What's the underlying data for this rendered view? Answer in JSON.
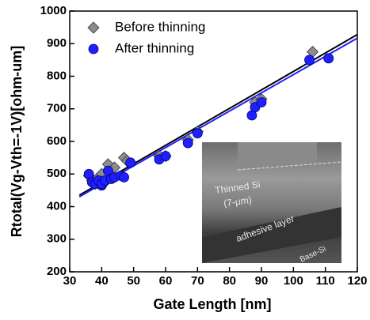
{
  "chart_data": {
    "type": "scatter",
    "xlabel": "Gate Length [nm]",
    "ylabel": "Rtotal(Vg-Vth=-1V)[ohm-um]",
    "xlim": [
      30,
      120
    ],
    "ylim": [
      200,
      1000
    ],
    "xticks": [
      30,
      40,
      50,
      60,
      70,
      80,
      90,
      100,
      110,
      120
    ],
    "yticks": [
      200,
      300,
      400,
      500,
      600,
      700,
      800,
      900,
      1000
    ],
    "legend": "upper left",
    "series": [
      {
        "name": "Before thinning",
        "color": "#8c8c8c",
        "marker": "diamond",
        "x": [
          36,
          37,
          38,
          39,
          40,
          41,
          42,
          43,
          44,
          47,
          48,
          58,
          60,
          67,
          70,
          88,
          90,
          106
        ],
        "values": [
          495,
          480,
          470,
          490,
          500,
          475,
          530,
          490,
          520,
          550,
          540,
          555,
          555,
          605,
          630,
          720,
          730,
          875
        ]
      },
      {
        "name": "After thinning",
        "color": "#1f1fff",
        "marker": "circle",
        "x": [
          36,
          37,
          38,
          39,
          40,
          40,
          41,
          42,
          43,
          44,
          46,
          47,
          49,
          58,
          60,
          67,
          70,
          87,
          88,
          90,
          105,
          111
        ],
        "values": [
          500,
          475,
          470,
          480,
          465,
          470,
          480,
          510,
          485,
          490,
          495,
          490,
          535,
          545,
          555,
          595,
          625,
          680,
          705,
          720,
          850,
          855
        ]
      }
    ],
    "fits": [
      {
        "color": "#000000",
        "x": [
          33,
          120
        ],
        "values": [
          435,
          928
        ]
      },
      {
        "color": "#1f1fff",
        "x": [
          33,
          120
        ],
        "values": [
          430,
          917
        ]
      }
    ],
    "inset": {
      "top_label": "Thinned Si",
      "thickness": "(7-μm)",
      "middle_label": "adhesive layer",
      "bottom_label": "Base-Si"
    }
  }
}
